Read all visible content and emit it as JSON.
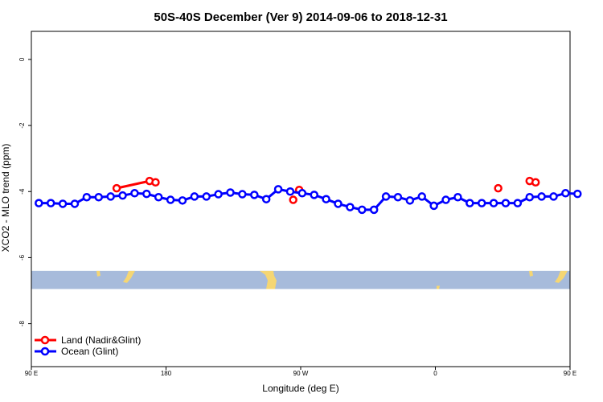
{
  "chart_data": {
    "type": "line",
    "title": "50S-40S December (Ver 9)   2014-09-06 to 2018-12-31",
    "xlabel": "Longitude (deg E)",
    "ylabel": "XCO2 - MLO trend (ppm)",
    "xlim": [
      90,
      450
    ],
    "ylim": [
      -9.3,
      0.85
    ],
    "x_ticks": [
      {
        "value": 90,
        "label": "90 E"
      },
      {
        "value": 180,
        "label": "180"
      },
      {
        "value": 270,
        "label": "90 W"
      },
      {
        "value": 360,
        "label": "0"
      },
      {
        "value": 450,
        "label": "90 E"
      },
      {
        "value": 540,
        "label": "180"
      }
    ],
    "y_ticks": [
      0,
      -2,
      -4,
      -6,
      -8
    ],
    "grid": false,
    "legend_position": "bottom-left",
    "series": [
      {
        "name": "Land (Nadir&Glint)",
        "color": "#ff0000",
        "segments": [
          [
            [
              147,
              -3.9
            ],
            [
              169,
              -3.68
            ],
            [
              173,
              -3.72
            ]
          ],
          [
            [
              265,
              -4.25
            ]
          ],
          [
            [
              269,
              -3.95
            ]
          ],
          [
            [
              402,
              -3.9
            ]
          ],
          [
            [
              423,
              -3.68
            ],
            [
              427,
              -3.72
            ]
          ]
        ]
      },
      {
        "name": "Ocean (Glint)",
        "color": "#0000ff",
        "segments": [
          [
            [
              95,
              -4.35
            ],
            [
              103,
              -4.35
            ],
            [
              111,
              -4.37
            ],
            [
              119,
              -4.37
            ],
            [
              127,
              -4.17
            ],
            [
              135,
              -4.17
            ],
            [
              143,
              -4.15
            ],
            [
              151,
              -4.12
            ],
            [
              159,
              -4.05
            ],
            [
              167,
              -4.07
            ],
            [
              175,
              -4.17
            ],
            [
              183,
              -4.25
            ],
            [
              191,
              -4.27
            ],
            [
              199,
              -4.15
            ],
            [
              207,
              -4.15
            ],
            [
              215,
              -4.08
            ],
            [
              223,
              -4.03
            ],
            [
              231,
              -4.08
            ],
            [
              239,
              -4.1
            ],
            [
              247,
              -4.23
            ],
            [
              255,
              -3.93
            ],
            [
              263,
              -4.0
            ],
            [
              271,
              -4.05
            ],
            [
              279,
              -4.1
            ],
            [
              287,
              -4.23
            ],
            [
              295,
              -4.37
            ],
            [
              303,
              -4.47
            ],
            [
              311,
              -4.55
            ],
            [
              319,
              -4.55
            ],
            [
              327,
              -4.15
            ],
            [
              335,
              -4.17
            ],
            [
              343,
              -4.27
            ],
            [
              351,
              -4.15
            ],
            [
              359,
              -4.43
            ],
            [
              367,
              -4.25
            ],
            [
              375,
              -4.17
            ],
            [
              383,
              -4.35
            ],
            [
              391,
              -4.35
            ],
            [
              399,
              -4.35
            ],
            [
              407,
              -4.35
            ],
            [
              415,
              -4.35
            ],
            [
              423,
              -4.17
            ],
            [
              431,
              -4.15
            ],
            [
              439,
              -4.15
            ],
            [
              447,
              -4.05
            ],
            [
              455,
              -4.07
            ]
          ]
        ]
      }
    ]
  },
  "map_strip": {
    "ocean_color": "#a7bbdb",
    "land_color": "#f5d673",
    "y_range": [
      -6.4,
      -6.95
    ]
  }
}
